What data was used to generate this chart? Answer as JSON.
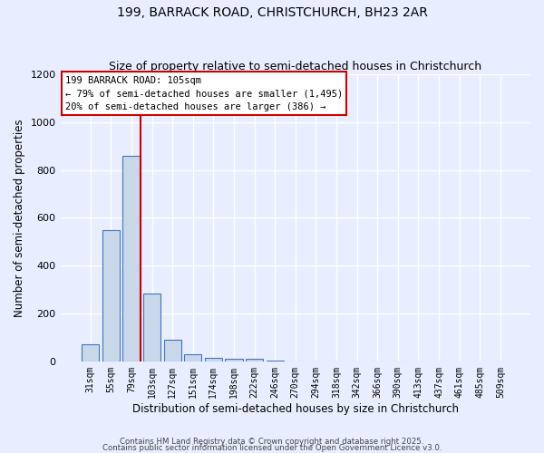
{
  "title1": "199, BARRACK ROAD, CHRISTCHURCH, BH23 2AR",
  "title2": "Size of property relative to semi-detached houses in Christchurch",
  "xlabel": "Distribution of semi-detached houses by size in Christchurch",
  "ylabel": "Number of semi-detached properties",
  "bar_color": "#c8d8e8",
  "bar_edge_color": "#4472c4",
  "bin_labels": [
    "31sqm",
    "55sqm",
    "79sqm",
    "103sqm",
    "127sqm",
    "151sqm",
    "174sqm",
    "198sqm",
    "222sqm",
    "246sqm",
    "270sqm",
    "294sqm",
    "318sqm",
    "342sqm",
    "366sqm",
    "390sqm",
    "413sqm",
    "437sqm",
    "461sqm",
    "485sqm",
    "509sqm"
  ],
  "bin_values": [
    70,
    550,
    860,
    285,
    90,
    30,
    15,
    10,
    10,
    5,
    0,
    0,
    0,
    0,
    0,
    0,
    0,
    0,
    0,
    0,
    0
  ],
  "property_bin_index": 2,
  "annotation_title": "199 BARRACK ROAD: 105sqm",
  "annotation_line1": "← 79% of semi-detached houses are smaller (1,495)",
  "annotation_line2": "20% of semi-detached houses are larger (386) →",
  "annotation_box_color": "#ffffff",
  "annotation_box_edge": "#cc0000",
  "red_line_color": "#cc0000",
  "ylim": [
    0,
    1200
  ],
  "yticks": [
    0,
    200,
    400,
    600,
    800,
    1000,
    1200
  ],
  "background_color": "#e8eeff",
  "grid_color": "#ffffff",
  "footer1": "Contains HM Land Registry data © Crown copyright and database right 2025.",
  "footer2": "Contains public sector information licensed under the Open Government Licence v3.0.",
  "title1_fontsize": 10,
  "title2_fontsize": 9,
  "tick_fontsize": 7,
  "ylabel_fontsize": 8.5,
  "xlabel_fontsize": 8.5
}
